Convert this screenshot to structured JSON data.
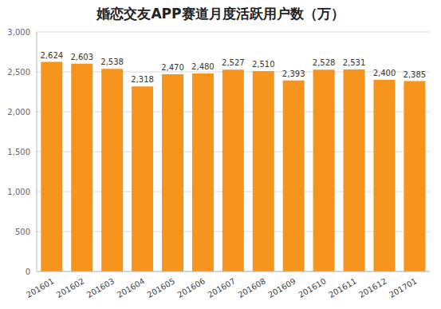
{
  "chart_data": {
    "type": "bar",
    "title": "婚恋交友APP赛道月度活跃用户数（万）",
    "categories": [
      "201601",
      "201602",
      "201603",
      "201604",
      "201605",
      "201606",
      "201607",
      "201608",
      "201609",
      "201610",
      "201611",
      "201612",
      "201701"
    ],
    "values": [
      2624,
      2603,
      2538,
      2318,
      2470,
      2480,
      2527,
      2510,
      2393,
      2528,
      2531,
      2400,
      2385
    ],
    "value_labels": [
      "2,624",
      "2,603",
      "2,538",
      "2,318",
      "2,470",
      "2,480",
      "2,527",
      "2,510",
      "2,393",
      "2,528",
      "2,531",
      "2,400",
      "2,385"
    ],
    "color": "#f7941d",
    "ylim": [
      0,
      3000
    ],
    "yticks": [
      0,
      500,
      {
        "value": 1000,
        "label": "1,000"
      },
      {
        "value": 1500,
        "label": "1,500"
      },
      {
        "value": 2000,
        "label": "2,000"
      },
      {
        "value": 2500,
        "label": "2,500"
      },
      {
        "value": 3000,
        "label": "3,000"
      }
    ],
    "grid": true,
    "data_labels": true
  }
}
